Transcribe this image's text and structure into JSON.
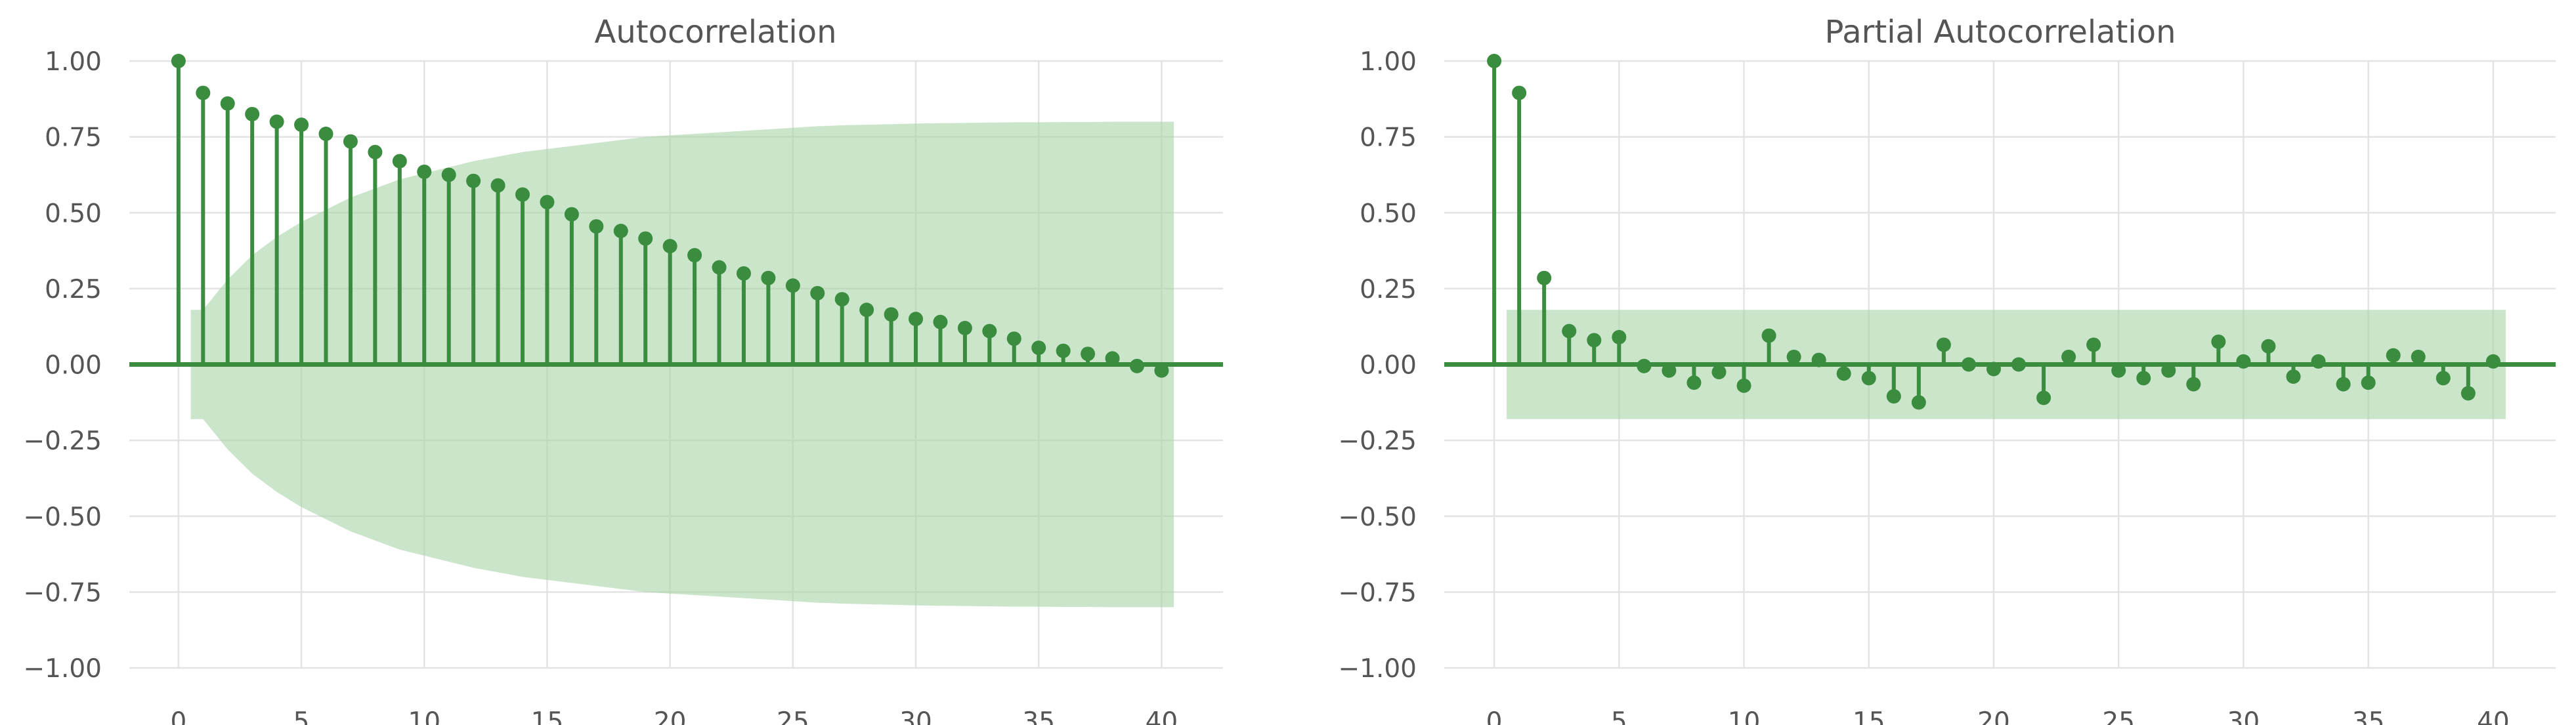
{
  "colors": {
    "stem": "#3a8c3f",
    "marker": "#3a8c3f",
    "confidence_band": "#a9d4a9",
    "grid": "#e3e3e3",
    "text": "#555555",
    "background": "#ffffff"
  },
  "chart_data": [
    {
      "type": "stem",
      "title": "Autocorrelation",
      "xlabel": "",
      "ylabel": "",
      "xlim": [
        -2,
        42.5
      ],
      "ylim": [
        -1.0,
        1.0
      ],
      "xticks": [
        "0",
        "5",
        "10",
        "15",
        "20",
        "25",
        "30",
        "35",
        "40"
      ],
      "yticks": [
        "1.00",
        "0.75",
        "0.50",
        "0.25",
        "0.00",
        "−0.25",
        "−0.50",
        "−0.75",
        "−1.00"
      ],
      "grid": true,
      "lags": [
        0,
        1,
        2,
        3,
        4,
        5,
        6,
        7,
        8,
        9,
        10,
        11,
        12,
        13,
        14,
        15,
        16,
        17,
        18,
        19,
        20,
        21,
        22,
        23,
        24,
        25,
        26,
        27,
        28,
        29,
        30,
        31,
        32,
        33,
        34,
        35,
        36,
        37,
        38,
        39,
        40
      ],
      "values": [
        1.0,
        0.895,
        0.86,
        0.825,
        0.8,
        0.79,
        0.76,
        0.735,
        0.7,
        0.67,
        0.635,
        0.625,
        0.605,
        0.59,
        0.56,
        0.535,
        0.495,
        0.455,
        0.44,
        0.415,
        0.39,
        0.36,
        0.32,
        0.3,
        0.285,
        0.26,
        0.235,
        0.215,
        0.18,
        0.165,
        0.15,
        0.14,
        0.12,
        0.11,
        0.085,
        0.055,
        0.045,
        0.035,
        0.02,
        -0.005,
        -0.02
      ],
      "confidence_band": {
        "lags": [
          0.5,
          1,
          2,
          3,
          4,
          5,
          6,
          7,
          8,
          9,
          10,
          11,
          12,
          13,
          14,
          15,
          16,
          17,
          18,
          19,
          20,
          21,
          22,
          23,
          24,
          25,
          26,
          27,
          28,
          29,
          30,
          31,
          32,
          33,
          34,
          35,
          36,
          37,
          38,
          39,
          40,
          40.5
        ],
        "upper": [
          0.18,
          0.18,
          0.28,
          0.36,
          0.42,
          0.47,
          0.51,
          0.55,
          0.58,
          0.61,
          0.63,
          0.65,
          0.67,
          0.685,
          0.7,
          0.71,
          0.72,
          0.73,
          0.74,
          0.75,
          0.755,
          0.76,
          0.765,
          0.77,
          0.775,
          0.78,
          0.785,
          0.788,
          0.79,
          0.792,
          0.794,
          0.795,
          0.796,
          0.797,
          0.798,
          0.798,
          0.799,
          0.799,
          0.8,
          0.8,
          0.8,
          0.8
        ]
      }
    },
    {
      "type": "stem",
      "title": "Partial Autocorrelation",
      "xlabel": "",
      "ylabel": "",
      "xlim": [
        -2,
        42.5
      ],
      "ylim": [
        -1.0,
        1.0
      ],
      "xticks": [
        "0",
        "5",
        "10",
        "15",
        "20",
        "25",
        "30",
        "35",
        "40"
      ],
      "yticks": [
        "1.00",
        "0.75",
        "0.50",
        "0.25",
        "0.00",
        "−0.25",
        "−0.50",
        "−0.75",
        "−1.00"
      ],
      "grid": true,
      "lags": [
        0,
        1,
        2,
        3,
        4,
        5,
        6,
        7,
        8,
        9,
        10,
        11,
        12,
        13,
        14,
        15,
        16,
        17,
        18,
        19,
        20,
        21,
        22,
        23,
        24,
        25,
        26,
        27,
        28,
        29,
        30,
        31,
        32,
        33,
        34,
        35,
        36,
        37,
        38,
        39,
        40
      ],
      "values": [
        1.0,
        0.895,
        0.285,
        0.11,
        0.08,
        0.09,
        -0.005,
        -0.02,
        -0.06,
        -0.025,
        -0.07,
        0.095,
        0.025,
        0.015,
        -0.03,
        -0.045,
        -0.105,
        -0.125,
        0.065,
        0.0,
        -0.015,
        0.0,
        -0.11,
        0.025,
        0.065,
        -0.02,
        -0.045,
        -0.02,
        -0.065,
        0.075,
        0.01,
        0.06,
        -0.04,
        0.01,
        -0.065,
        -0.06,
        0.03,
        0.025,
        -0.045,
        -0.095,
        0.01
      ],
      "confidence_band": {
        "lags": [
          0.5,
          40.5
        ],
        "upper": [
          0.18,
          0.18
        ]
      }
    }
  ]
}
